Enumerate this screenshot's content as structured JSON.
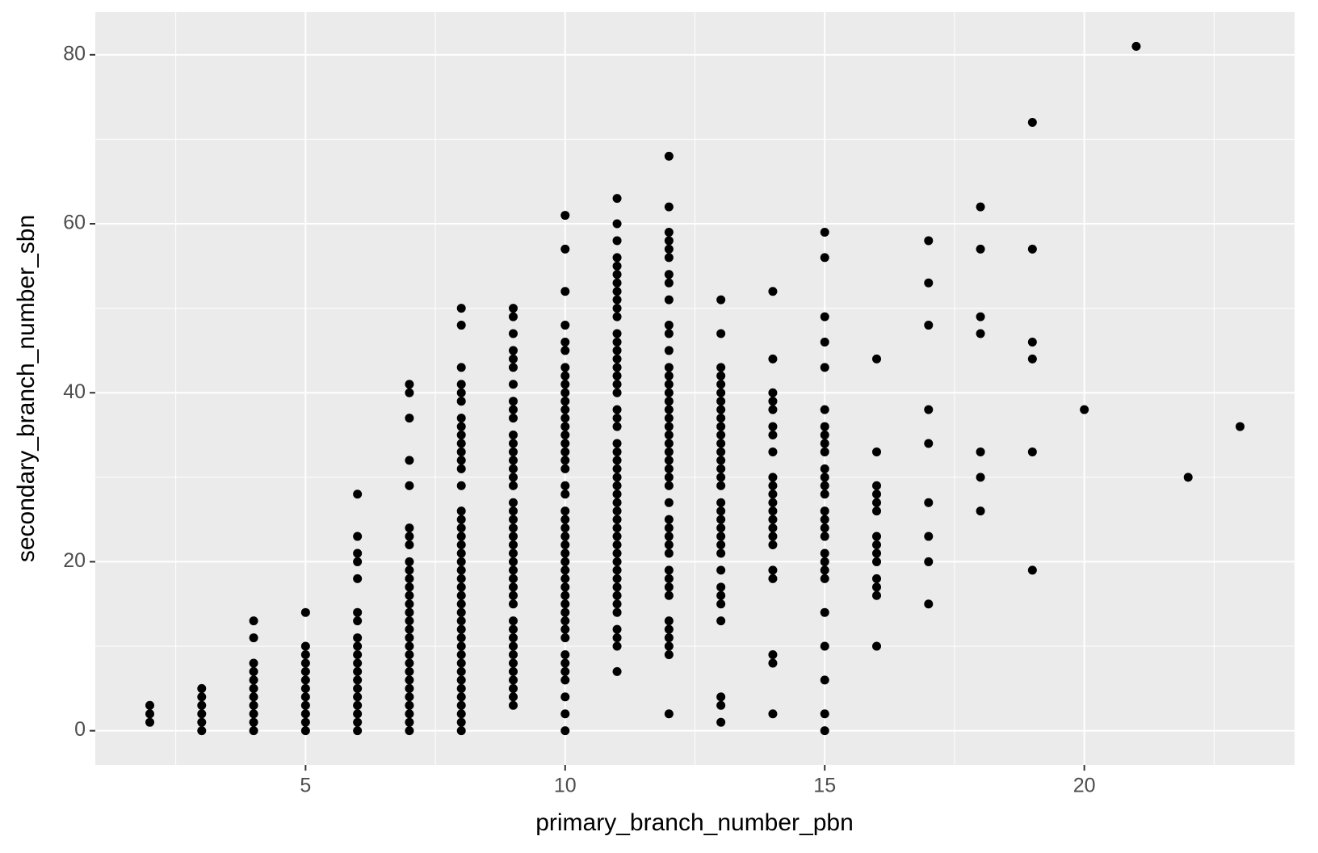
{
  "chart_data": {
    "type": "scatter",
    "x_label": "primary_branch_number_pbn",
    "y_label": "secondary_branch_number_sbn",
    "color": "#000000",
    "xlim": [
      0.95,
      24.05
    ],
    "ylim": [
      -4.05,
      85.05
    ],
    "xticks": [
      5,
      10,
      15,
      20
    ],
    "yticks": [
      0,
      20,
      40,
      60,
      80
    ],
    "x_minor_breaks": [
      2.5,
      7.5,
      12.5,
      17.5,
      22.5
    ],
    "y_minor_breaks": [
      10,
      30,
      50,
      70
    ],
    "grid": true,
    "x": [
      2,
      2,
      2,
      3,
      3,
      3,
      3,
      3,
      3,
      4,
      4,
      4,
      4,
      4,
      4,
      4,
      4,
      4,
      4,
      4,
      5,
      5,
      5,
      5,
      5,
      5,
      5,
      5,
      5,
      5,
      5,
      5,
      6,
      6,
      6,
      6,
      6,
      6,
      6,
      6,
      6,
      6,
      6,
      6,
      6,
      6,
      6,
      6,
      6,
      6,
      6,
      7,
      7,
      7,
      7,
      7,
      7,
      7,
      7,
      7,
      7,
      7,
      7,
      7,
      7,
      7,
      7,
      7,
      7,
      7,
      7,
      7,
      7,
      7,
      7,
      7,
      7,
      7,
      7,
      7,
      8,
      8,
      8,
      8,
      8,
      8,
      8,
      8,
      8,
      8,
      8,
      8,
      8,
      8,
      8,
      8,
      8,
      8,
      8,
      8,
      8,
      8,
      8,
      8,
      8,
      8,
      8,
      8,
      8,
      8,
      8,
      8,
      8,
      8,
      8,
      8,
      8,
      8,
      8,
      8,
      8,
      9,
      9,
      9,
      9,
      9,
      9,
      9,
      9,
      9,
      9,
      9,
      9,
      9,
      9,
      9,
      9,
      9,
      9,
      9,
      9,
      9,
      9,
      9,
      9,
      9,
      9,
      9,
      9,
      9,
      9,
      9,
      9,
      9,
      9,
      9,
      9,
      9,
      9,
      9,
      9,
      9,
      10,
      10,
      10,
      10,
      10,
      10,
      10,
      10,
      10,
      10,
      10,
      10,
      10,
      10,
      10,
      10,
      10,
      10,
      10,
      10,
      10,
      10,
      10,
      10,
      10,
      10,
      10,
      10,
      10,
      10,
      10,
      10,
      10,
      10,
      10,
      10,
      10,
      10,
      10,
      10,
      10,
      10,
      10,
      10,
      11,
      11,
      11,
      11,
      11,
      11,
      11,
      11,
      11,
      11,
      11,
      11,
      11,
      11,
      11,
      11,
      11,
      11,
      11,
      11,
      11,
      11,
      11,
      11,
      11,
      11,
      11,
      11,
      11,
      11,
      11,
      11,
      11,
      11,
      11,
      11,
      11,
      11,
      11,
      11,
      11,
      11,
      11,
      11,
      11,
      11,
      11,
      12,
      12,
      12,
      12,
      12,
      12,
      12,
      12,
      12,
      12,
      12,
      12,
      12,
      12,
      12,
      12,
      12,
      12,
      12,
      12,
      12,
      12,
      12,
      12,
      12,
      12,
      12,
      12,
      12,
      12,
      12,
      12,
      12,
      12,
      12,
      12,
      12,
      12,
      12,
      12,
      12,
      12,
      12,
      13,
      13,
      13,
      13,
      13,
      13,
      13,
      13,
      13,
      13,
      13,
      13,
      13,
      13,
      13,
      13,
      13,
      13,
      13,
      13,
      13,
      13,
      13,
      13,
      13,
      13,
      13,
      13,
      13,
      13,
      13,
      13,
      14,
      14,
      14,
      14,
      14,
      14,
      14,
      14,
      14,
      14,
      14,
      14,
      14,
      14,
      14,
      14,
      14,
      14,
      14,
      14,
      14,
      14,
      15,
      15,
      15,
      15,
      15,
      15,
      15,
      15,
      15,
      15,
      15,
      15,
      15,
      15,
      15,
      15,
      15,
      15,
      15,
      15,
      15,
      15,
      15,
      15,
      15,
      15,
      15,
      16,
      16,
      16,
      16,
      16,
      16,
      16,
      16,
      16,
      16,
      16,
      16,
      16,
      16,
      17,
      17,
      17,
      17,
      17,
      17,
      17,
      17,
      17,
      18,
      18,
      18,
      18,
      18,
      18,
      18,
      19,
      19,
      19,
      19,
      19,
      19,
      20,
      21,
      22,
      23
    ],
    "values": [
      1,
      2,
      3,
      0,
      1,
      2,
      3,
      4,
      5,
      0,
      1,
      2,
      3,
      4,
      5,
      6,
      7,
      8,
      11,
      13,
      0,
      1,
      2,
      3,
      4,
      5,
      6,
      7,
      8,
      9,
      10,
      14,
      0,
      1,
      2,
      3,
      4,
      5,
      6,
      7,
      8,
      9,
      10,
      11,
      13,
      14,
      18,
      20,
      21,
      23,
      28,
      0,
      1,
      2,
      3,
      4,
      5,
      6,
      7,
      8,
      9,
      10,
      11,
      12,
      13,
      14,
      15,
      16,
      17,
      18,
      19,
      20,
      22,
      23,
      24,
      29,
      32,
      37,
      40,
      41,
      0,
      1,
      2,
      3,
      4,
      5,
      6,
      7,
      8,
      9,
      10,
      11,
      12,
      13,
      14,
      15,
      16,
      17,
      18,
      19,
      20,
      21,
      22,
      23,
      24,
      25,
      26,
      29,
      31,
      32,
      33,
      34,
      35,
      36,
      37,
      39,
      40,
      41,
      43,
      48,
      50,
      3,
      4,
      5,
      6,
      7,
      8,
      9,
      10,
      11,
      12,
      13,
      15,
      16,
      17,
      18,
      19,
      20,
      21,
      22,
      23,
      24,
      25,
      26,
      27,
      29,
      30,
      31,
      32,
      33,
      34,
      35,
      37,
      38,
      39,
      41,
      43,
      44,
      45,
      47,
      49,
      50,
      0,
      2,
      4,
      6,
      7,
      8,
      9,
      11,
      12,
      13,
      14,
      15,
      16,
      17,
      18,
      19,
      20,
      21,
      22,
      23,
      24,
      25,
      26,
      28,
      29,
      31,
      32,
      33,
      34,
      35,
      36,
      37,
      38,
      39,
      40,
      41,
      42,
      43,
      45,
      46,
      48,
      52,
      57,
      61,
      7,
      10,
      11,
      12,
      14,
      15,
      16,
      17,
      18,
      19,
      20,
      21,
      22,
      23,
      24,
      25,
      26,
      27,
      28,
      29,
      30,
      31,
      32,
      33,
      34,
      36,
      37,
      38,
      40,
      41,
      42,
      43,
      44,
      45,
      46,
      47,
      49,
      50,
      51,
      52,
      53,
      54,
      55,
      56,
      58,
      60,
      63,
      2,
      9,
      10,
      11,
      12,
      13,
      16,
      17,
      18,
      19,
      21,
      22,
      23,
      24,
      25,
      27,
      29,
      30,
      31,
      32,
      33,
      34,
      35,
      36,
      37,
      38,
      39,
      40,
      41,
      42,
      43,
      45,
      47,
      48,
      51,
      53,
      54,
      56,
      57,
      58,
      59,
      62,
      68,
      1,
      3,
      4,
      13,
      15,
      16,
      17,
      19,
      21,
      22,
      23,
      24,
      25,
      26,
      27,
      29,
      30,
      31,
      32,
      33,
      34,
      35,
      36,
      37,
      38,
      39,
      40,
      41,
      42,
      43,
      47,
      51,
      2,
      8,
      9,
      18,
      19,
      22,
      23,
      24,
      25,
      26,
      27,
      28,
      29,
      30,
      33,
      35,
      36,
      38,
      39,
      40,
      44,
      52,
      0,
      2,
      6,
      10,
      14,
      18,
      19,
      20,
      21,
      23,
      24,
      25,
      26,
      28,
      29,
      30,
      31,
      33,
      34,
      35,
      36,
      38,
      43,
      46,
      49,
      56,
      59,
      10,
      16,
      17,
      18,
      20,
      21,
      22,
      23,
      26,
      27,
      28,
      29,
      33,
      44,
      15,
      20,
      23,
      27,
      34,
      38,
      48,
      53,
      58,
      26,
      30,
      33,
      47,
      49,
      57,
      62,
      19,
      33,
      44,
      46,
      57,
      72,
      38,
      81,
      30,
      36
    ]
  }
}
